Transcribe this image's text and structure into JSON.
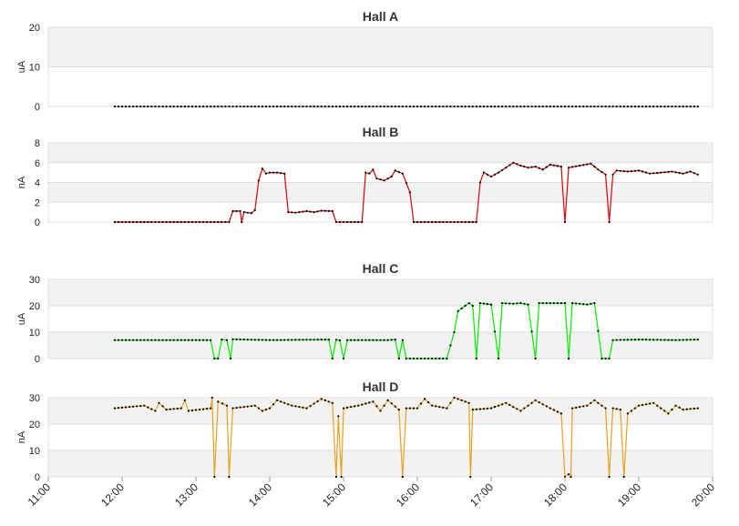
{
  "chart_data": [
    {
      "type": "line",
      "title": "Hall A",
      "ylabel": "uA",
      "ylim": [
        0,
        20
      ],
      "yticks": [
        "0",
        "10",
        "20"
      ],
      "color": "#888888",
      "series": [
        {
          "values": [
            [
              11.9,
              0
            ],
            [
              19.8,
              0
            ]
          ]
        }
      ]
    },
    {
      "type": "line",
      "title": "Hall B",
      "ylabel": "nA",
      "ylim": [
        0,
        8
      ],
      "yticks": [
        "0",
        "2",
        "4",
        "6",
        "8"
      ],
      "color": "#dd0000",
      "series": [
        {
          "values": [
            [
              11.9,
              0
            ],
            [
              13.45,
              0
            ],
            [
              13.5,
              1.1
            ],
            [
              13.6,
              1.1
            ],
            [
              13.62,
              0
            ],
            [
              13.65,
              1.0
            ],
            [
              13.75,
              0.9
            ],
            [
              13.8,
              1.2
            ],
            [
              13.85,
              4.2
            ],
            [
              13.9,
              5.4
            ],
            [
              13.95,
              4.9
            ],
            [
              14.0,
              5.0
            ],
            [
              14.1,
              5.0
            ],
            [
              14.2,
              4.9
            ],
            [
              14.25,
              1.0
            ],
            [
              14.35,
              0.95
            ],
            [
              14.5,
              1.1
            ],
            [
              14.6,
              1.0
            ],
            [
              14.7,
              1.15
            ],
            [
              14.85,
              1.1
            ],
            [
              14.9,
              0
            ],
            [
              15.25,
              0
            ],
            [
              15.3,
              5.0
            ],
            [
              15.35,
              4.9
            ],
            [
              15.4,
              5.3
            ],
            [
              15.45,
              4.4
            ],
            [
              15.55,
              4.2
            ],
            [
              15.65,
              4.6
            ],
            [
              15.7,
              5.2
            ],
            [
              15.8,
              4.9
            ],
            [
              15.9,
              3.0
            ],
            [
              15.95,
              0
            ],
            [
              16.8,
              0
            ],
            [
              16.85,
              4.0
            ],
            [
              16.9,
              5.0
            ],
            [
              17.0,
              4.6
            ],
            [
              17.1,
              5.0
            ],
            [
              17.2,
              5.5
            ],
            [
              17.3,
              6.0
            ],
            [
              17.4,
              5.7
            ],
            [
              17.5,
              5.5
            ],
            [
              17.6,
              5.6
            ],
            [
              17.7,
              5.3
            ],
            [
              17.8,
              5.8
            ],
            [
              17.95,
              5.6
            ],
            [
              18.0,
              0
            ],
            [
              18.05,
              5.5
            ],
            [
              18.2,
              5.7
            ],
            [
              18.35,
              5.9
            ],
            [
              18.45,
              5.3
            ],
            [
              18.55,
              4.8
            ],
            [
              18.6,
              0
            ],
            [
              18.65,
              4.8
            ],
            [
              18.7,
              5.2
            ],
            [
              18.85,
              5.1
            ],
            [
              19.0,
              5.2
            ],
            [
              19.15,
              4.9
            ],
            [
              19.3,
              5.0
            ],
            [
              19.45,
              5.1
            ],
            [
              19.6,
              4.9
            ],
            [
              19.7,
              5.1
            ],
            [
              19.8,
              4.8
            ]
          ]
        }
      ]
    },
    {
      "type": "line",
      "title": "Hall C",
      "ylabel": "uA",
      "ylim": [
        0,
        30
      ],
      "yticks": [
        "0",
        "10",
        "20",
        "30"
      ],
      "color": "#00ee00",
      "series": [
        {
          "values": [
            [
              11.9,
              7
            ],
            [
              13.2,
              7
            ],
            [
              13.25,
              0
            ],
            [
              13.3,
              0
            ],
            [
              13.35,
              7.2
            ],
            [
              13.42,
              7
            ],
            [
              13.47,
              0
            ],
            [
              13.5,
              7.3
            ],
            [
              14.0,
              7
            ],
            [
              14.8,
              7.2
            ],
            [
              14.85,
              0
            ],
            [
              14.9,
              7.1
            ],
            [
              14.95,
              6.9
            ],
            [
              15.0,
              0
            ],
            [
              15.05,
              7
            ],
            [
              15.6,
              7
            ],
            [
              15.7,
              7.2
            ],
            [
              15.75,
              0
            ],
            [
              15.8,
              7
            ],
            [
              15.85,
              0
            ],
            [
              16.4,
              0
            ],
            [
              16.45,
              5
            ],
            [
              16.5,
              10
            ],
            [
              16.55,
              18
            ],
            [
              16.65,
              20
            ],
            [
              16.7,
              21
            ],
            [
              16.75,
              20
            ],
            [
              16.8,
              0
            ],
            [
              16.85,
              21
            ],
            [
              17.0,
              20.5
            ],
            [
              17.1,
              0
            ],
            [
              17.15,
              21
            ],
            [
              17.3,
              20.8
            ],
            [
              17.4,
              21
            ],
            [
              17.5,
              20.5
            ],
            [
              17.6,
              0
            ],
            [
              17.65,
              21
            ],
            [
              18.0,
              21
            ],
            [
              18.05,
              0
            ],
            [
              18.1,
              21
            ],
            [
              18.3,
              20.5
            ],
            [
              18.4,
              21
            ],
            [
              18.5,
              0
            ],
            [
              18.6,
              0
            ],
            [
              18.65,
              7
            ],
            [
              19.0,
              7.2
            ],
            [
              19.5,
              7
            ],
            [
              19.8,
              7.2
            ]
          ]
        }
      ]
    },
    {
      "type": "line",
      "title": "Hall D",
      "ylabel": "nA",
      "ylim": [
        0,
        30
      ],
      "yticks": [
        "0",
        "10",
        "20",
        "30"
      ],
      "color": "#e8a020",
      "series": [
        {
          "values": [
            [
              11.9,
              26
            ],
            [
              12.3,
              27
            ],
            [
              12.45,
              25
            ],
            [
              12.5,
              28
            ],
            [
              12.6,
              25.5
            ],
            [
              12.8,
              26
            ],
            [
              12.85,
              29
            ],
            [
              12.9,
              25
            ],
            [
              13.2,
              26
            ],
            [
              13.22,
              30
            ],
            [
              13.25,
              0
            ],
            [
              13.3,
              28.5
            ],
            [
              13.42,
              27
            ],
            [
              13.45,
              0
            ],
            [
              13.5,
              26
            ],
            [
              13.8,
              27
            ],
            [
              13.9,
              25
            ],
            [
              14.0,
              26
            ],
            [
              14.1,
              29
            ],
            [
              14.3,
              27
            ],
            [
              14.5,
              26
            ],
            [
              14.7,
              29.5
            ],
            [
              14.85,
              28
            ],
            [
              14.9,
              0
            ],
            [
              14.93,
              23
            ],
            [
              14.97,
              0
            ],
            [
              15.0,
              26
            ],
            [
              15.2,
              27
            ],
            [
              15.4,
              28.5
            ],
            [
              15.5,
              25
            ],
            [
              15.6,
              29
            ],
            [
              15.75,
              25.5
            ],
            [
              15.8,
              0
            ],
            [
              15.85,
              26
            ],
            [
              16.0,
              26
            ],
            [
              16.1,
              29.5
            ],
            [
              16.2,
              27
            ],
            [
              16.4,
              26
            ],
            [
              16.5,
              30
            ],
            [
              16.7,
              28
            ],
            [
              16.72,
              0
            ],
            [
              16.75,
              25.5
            ],
            [
              17.0,
              26
            ],
            [
              17.2,
              28
            ],
            [
              17.4,
              25
            ],
            [
              17.6,
              29
            ],
            [
              17.8,
              26
            ],
            [
              17.95,
              24
            ],
            [
              18.0,
              0
            ],
            [
              18.05,
              1
            ],
            [
              18.08,
              0
            ],
            [
              18.1,
              26
            ],
            [
              18.3,
              27
            ],
            [
              18.4,
              29
            ],
            [
              18.55,
              26
            ],
            [
              18.6,
              0
            ],
            [
              18.65,
              26
            ],
            [
              18.75,
              25.5
            ],
            [
              18.8,
              0
            ],
            [
              18.85,
              24
            ],
            [
              19.0,
              27
            ],
            [
              19.2,
              28
            ],
            [
              19.4,
              24
            ],
            [
              19.5,
              27
            ],
            [
              19.6,
              25.5
            ],
            [
              19.8,
              26
            ]
          ]
        }
      ]
    }
  ],
  "x_axis": {
    "range": [
      11,
      20
    ],
    "ticks": [
      "11:00",
      "12:00",
      "13:00",
      "14:00",
      "15:00",
      "16:00",
      "17:00",
      "18:00",
      "19:00",
      "20:00"
    ]
  }
}
